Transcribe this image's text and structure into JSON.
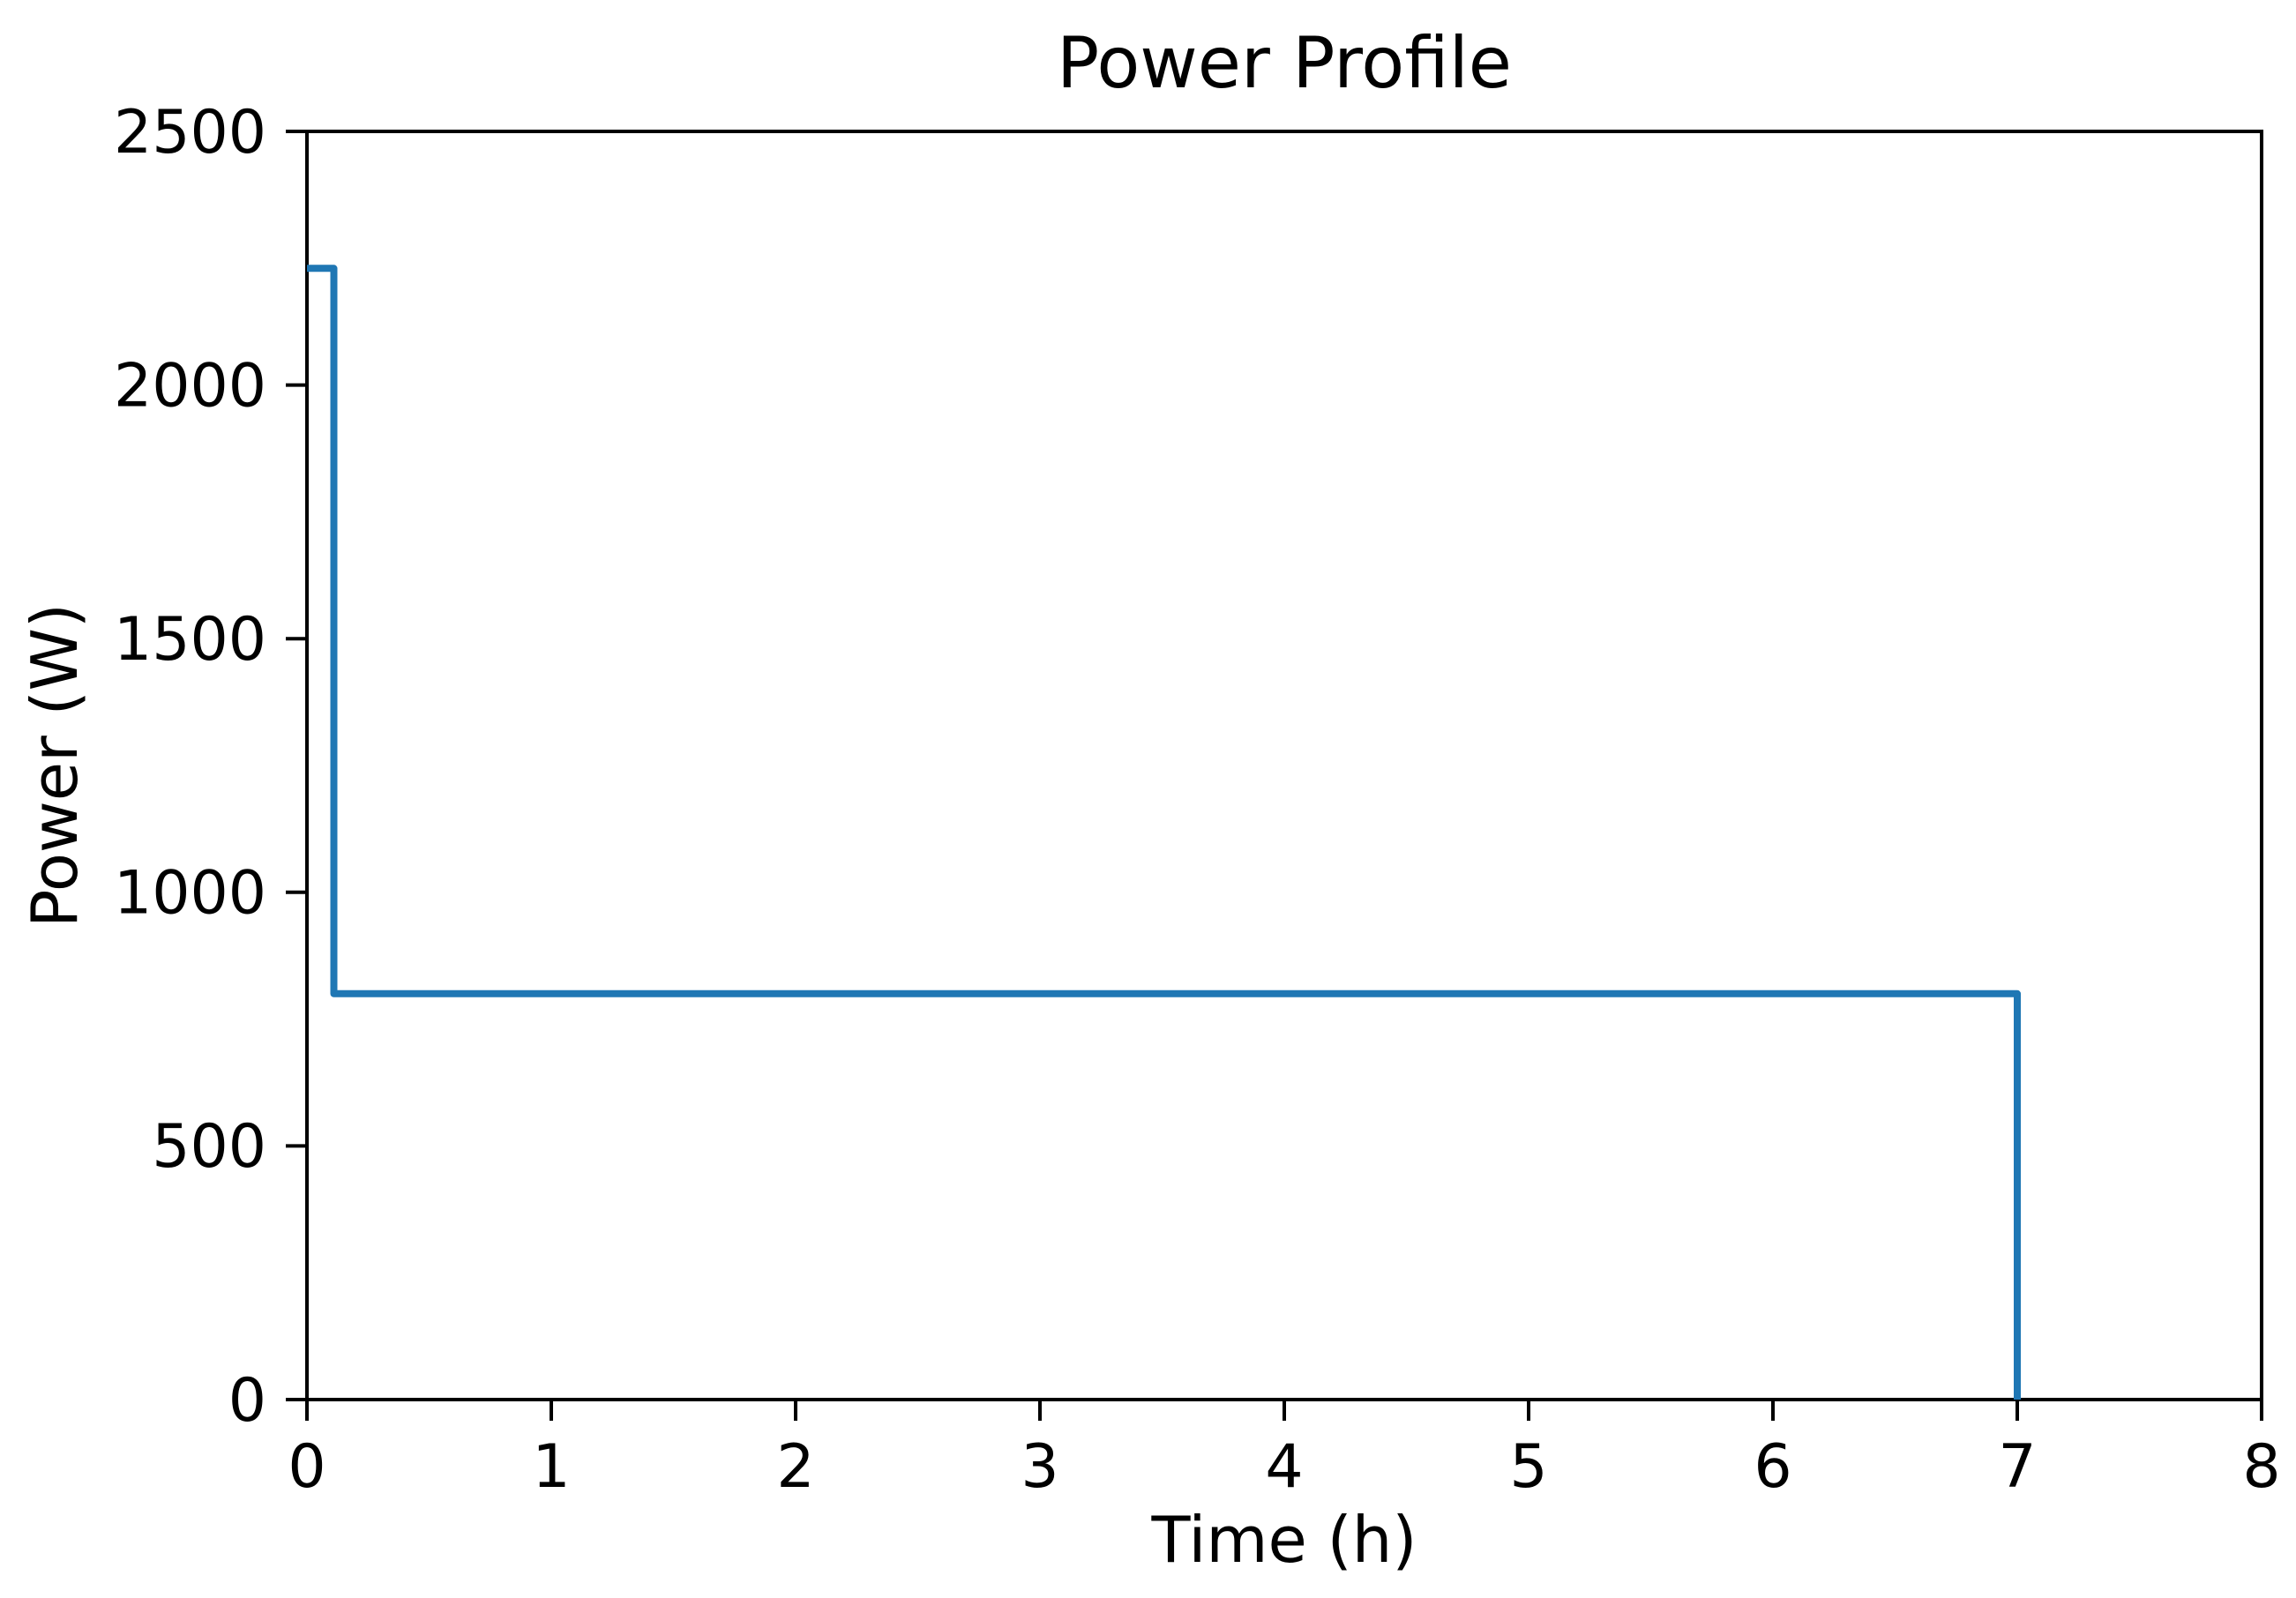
{
  "chart_data": {
    "type": "line",
    "title": "Power Profile",
    "xlabel": "Time (h)",
    "ylabel": "Power (W)",
    "xlim": [
      0,
      8
    ],
    "ylim": [
      0,
      2500
    ],
    "x_ticks": [
      0,
      1,
      2,
      3,
      4,
      5,
      6,
      7,
      8
    ],
    "y_ticks": [
      0,
      500,
      1000,
      1500,
      2000,
      2500
    ],
    "grid": false,
    "legend": "none",
    "line_color": "#1f77b4",
    "axis_color": "#000000",
    "series": [
      {
        "name": "power",
        "drawstyle": "steps",
        "points": [
          [
            0,
            2230
          ],
          [
            0.11,
            2230
          ],
          [
            0.11,
            800
          ],
          [
            7,
            800
          ],
          [
            7,
            0
          ]
        ]
      }
    ]
  }
}
